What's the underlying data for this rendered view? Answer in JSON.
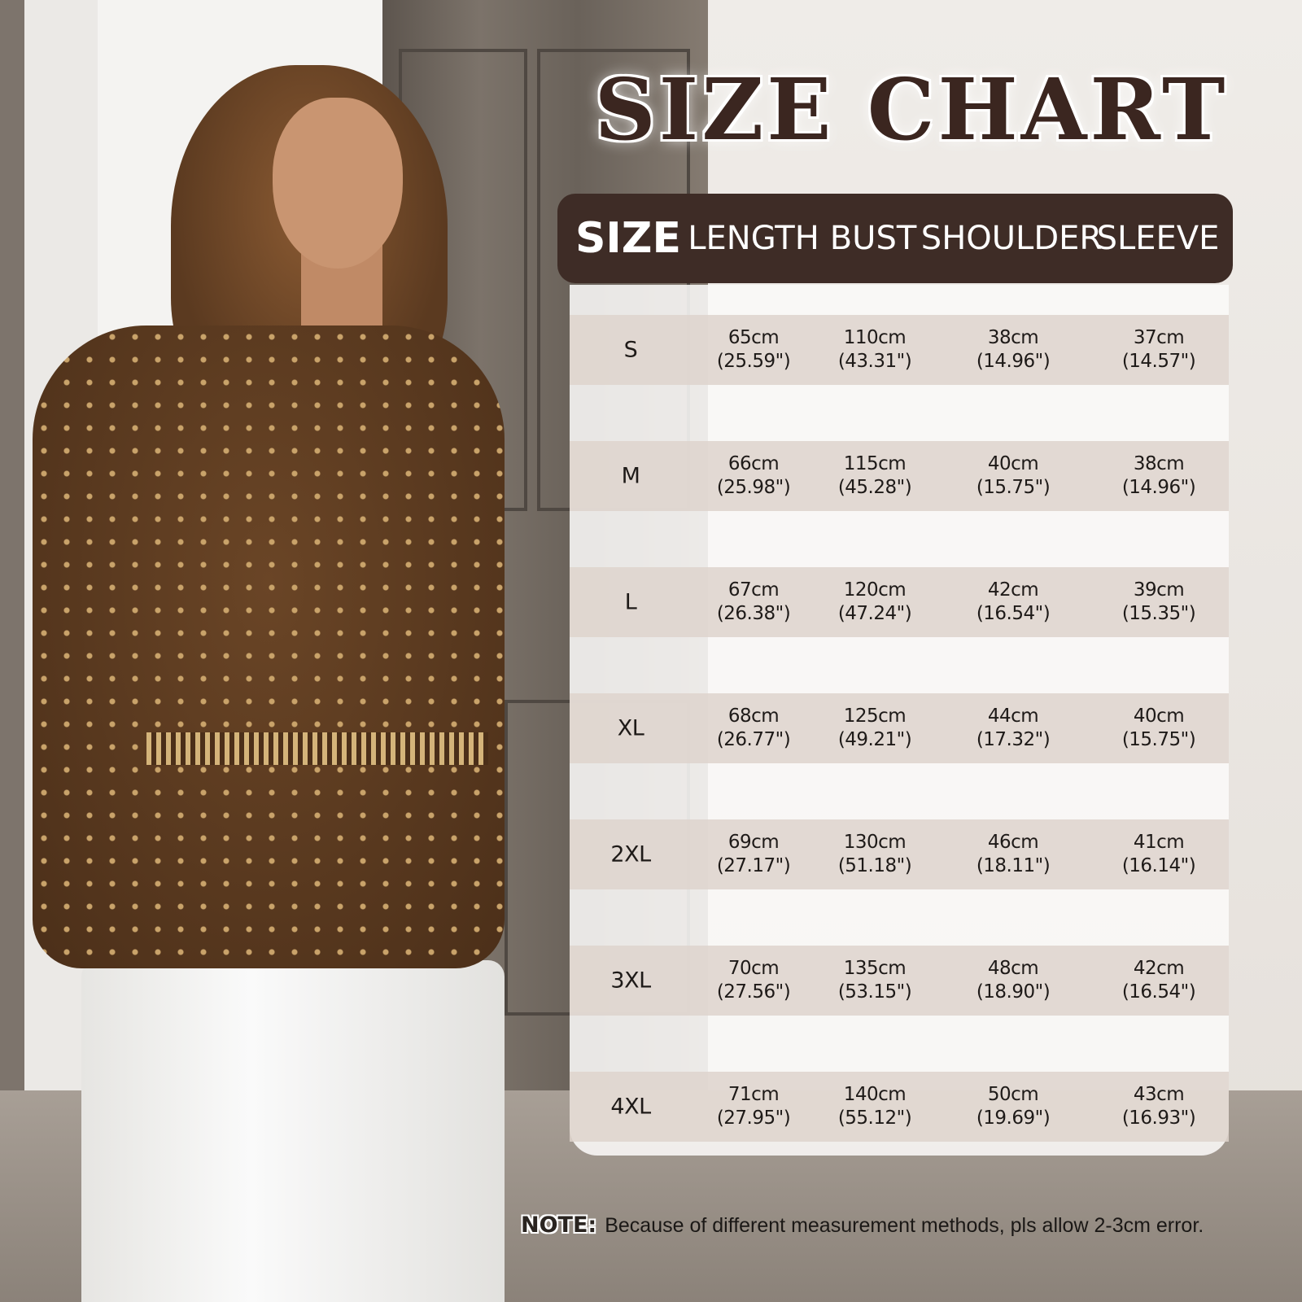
{
  "title": "SIZE CHART",
  "headers": [
    "SIZE",
    "LENGTH",
    "BUST",
    "SHOULDER",
    "SLEEVE"
  ],
  "rows": [
    {
      "size": "S",
      "length": [
        "65cm",
        "(25.59\")"
      ],
      "bust": [
        "110cm",
        "(43.31\")"
      ],
      "shoulder": [
        "38cm",
        "(14.96\")"
      ],
      "sleeve": [
        "37cm",
        "(14.57\")"
      ]
    },
    {
      "size": "M",
      "length": [
        "66cm",
        "(25.98\")"
      ],
      "bust": [
        "115cm",
        "(45.28\")"
      ],
      "shoulder": [
        "40cm",
        "(15.75\")"
      ],
      "sleeve": [
        "38cm",
        "(14.96\")"
      ]
    },
    {
      "size": "L",
      "length": [
        "67cm",
        "(26.38\")"
      ],
      "bust": [
        "120cm",
        "(47.24\")"
      ],
      "shoulder": [
        "42cm",
        "(16.54\")"
      ],
      "sleeve": [
        "39cm",
        "(15.35\")"
      ]
    },
    {
      "size": "XL",
      "length": [
        "68cm",
        "(26.77\")"
      ],
      "bust": [
        "125cm",
        "(49.21\")"
      ],
      "shoulder": [
        "44cm",
        "(17.32\")"
      ],
      "sleeve": [
        "40cm",
        "(15.75\")"
      ]
    },
    {
      "size": "2XL",
      "length": [
        "69cm",
        "(27.17\")"
      ],
      "bust": [
        "130cm",
        "(51.18\")"
      ],
      "shoulder": [
        "46cm",
        "(18.11\")"
      ],
      "sleeve": [
        "41cm",
        "(16.14\")"
      ]
    },
    {
      "size": "3XL",
      "length": [
        "70cm",
        "(27.56\")"
      ],
      "bust": [
        "135cm",
        "(53.15\")"
      ],
      "shoulder": [
        "48cm",
        "(18.90\")"
      ],
      "sleeve": [
        "42cm",
        "(16.54\")"
      ]
    },
    {
      "size": "4XL",
      "length": [
        "71cm",
        "(27.95\")"
      ],
      "bust": [
        "140cm",
        "(55.12\")"
      ],
      "shoulder": [
        "50cm",
        "(19.69\")"
      ],
      "sleeve": [
        "43cm",
        "(16.93\")"
      ]
    }
  ],
  "note": {
    "label": "NOTE:",
    "text": "Because of different measurement methods, pls allow 2-3cm error."
  },
  "colors": {
    "header_bg": "#3e2c26",
    "band": "#ded4cc",
    "title": "#3b2620"
  }
}
